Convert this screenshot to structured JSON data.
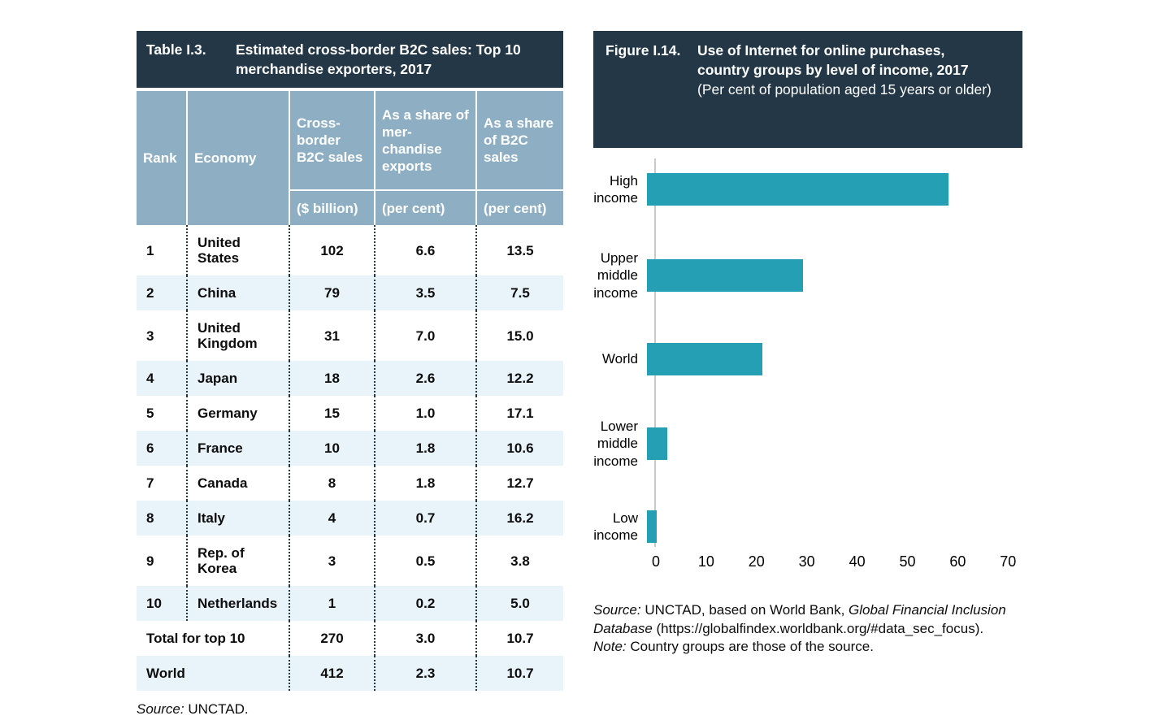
{
  "colors": {
    "navy": "#233747",
    "steel": "#8eafc3",
    "row-alt": "#e9f3fa",
    "teal": "#249fb3"
  },
  "table": {
    "label": "Table I.3.",
    "title": "Estimated cross-border B2C sales: Top 10 merchandise exporters, 2017",
    "columns": {
      "rank": "Rank",
      "economy": "Economy",
      "sales": "Cross-border B2C sales",
      "share_exports": "As a share of mer-chandise exports",
      "share_b2c": "As a share of B2C sales"
    },
    "units": {
      "sales": "($ billion)",
      "share_exports": "(per cent)",
      "share_b2c": "(per cent)"
    },
    "rows": [
      {
        "rank": "1",
        "economy": "United States",
        "sales": "102",
        "share_exports": "6.6",
        "share_b2c": "13.5"
      },
      {
        "rank": "2",
        "economy": "China",
        "sales": "79",
        "share_exports": "3.5",
        "share_b2c": "7.5"
      },
      {
        "rank": "3",
        "economy": "United Kingdom",
        "sales": "31",
        "share_exports": "7.0",
        "share_b2c": "15.0"
      },
      {
        "rank": "4",
        "economy": "Japan",
        "sales": "18",
        "share_exports": "2.6",
        "share_b2c": "12.2"
      },
      {
        "rank": "5",
        "economy": "Germany",
        "sales": "15",
        "share_exports": "1.0",
        "share_b2c": "17.1"
      },
      {
        "rank": "6",
        "economy": "France",
        "sales": "10",
        "share_exports": "1.8",
        "share_b2c": "10.6"
      },
      {
        "rank": "7",
        "economy": "Canada",
        "sales": "8",
        "share_exports": "1.8",
        "share_b2c": "12.7"
      },
      {
        "rank": "8",
        "economy": "Italy",
        "sales": "4",
        "share_exports": "0.7",
        "share_b2c": "16.2"
      },
      {
        "rank": "9",
        "economy": "Rep. of Korea",
        "sales": "3",
        "share_exports": "0.5",
        "share_b2c": "3.8"
      },
      {
        "rank": "10",
        "economy": "Netherlands",
        "sales": "1",
        "share_exports": "0.2",
        "share_b2c": "5.0"
      }
    ],
    "summary": [
      {
        "label": "Total for top 10",
        "sales": "270",
        "share_exports": "3.0",
        "share_b2c": "10.7"
      },
      {
        "label": "World",
        "sales": "412",
        "share_exports": "2.3",
        "share_b2c": "10.7"
      }
    ],
    "source_parts": [
      {
        "text": "Source:",
        "italic": true
      },
      {
        "text": " UNCTAD.",
        "italic": false
      }
    ]
  },
  "figure": {
    "label": "Figure I.14.",
    "source_parts": [
      {
        "text": "Source:",
        "italic": true
      },
      {
        "text": " UNCTAD, based on World Bank, ",
        "italic": false
      },
      {
        "text": "Global Financial Inclusion Database",
        "italic": true
      },
      {
        "text": " (https://globalfindex.worldbank.org/#data_sec_focus).",
        "italic": false
      }
    ],
    "note_parts": [
      {
        "text": "Note:",
        "italic": true
      },
      {
        "text": " Country groups are those of the source.",
        "italic": false
      }
    ]
  },
  "chart_data": {
    "type": "bar",
    "orientation": "horizontal",
    "title": "Use of Internet for online purchases, country groups by level of income, 2017",
    "subtitle": "(Per cent of population aged 15 years or older)",
    "categories": [
      "High income",
      "Upper middle income",
      "World",
      "Lower middle income",
      "Low income"
    ],
    "values": [
      60,
      31,
      23,
      4,
      2
    ],
    "xlabel": "",
    "ylabel": "",
    "xlim": [
      0,
      70
    ],
    "xticks": [
      0,
      10,
      20,
      30,
      40,
      50,
      60,
      70
    ],
    "grid": false,
    "legend": "none",
    "bar_color": "#249fb3"
  }
}
